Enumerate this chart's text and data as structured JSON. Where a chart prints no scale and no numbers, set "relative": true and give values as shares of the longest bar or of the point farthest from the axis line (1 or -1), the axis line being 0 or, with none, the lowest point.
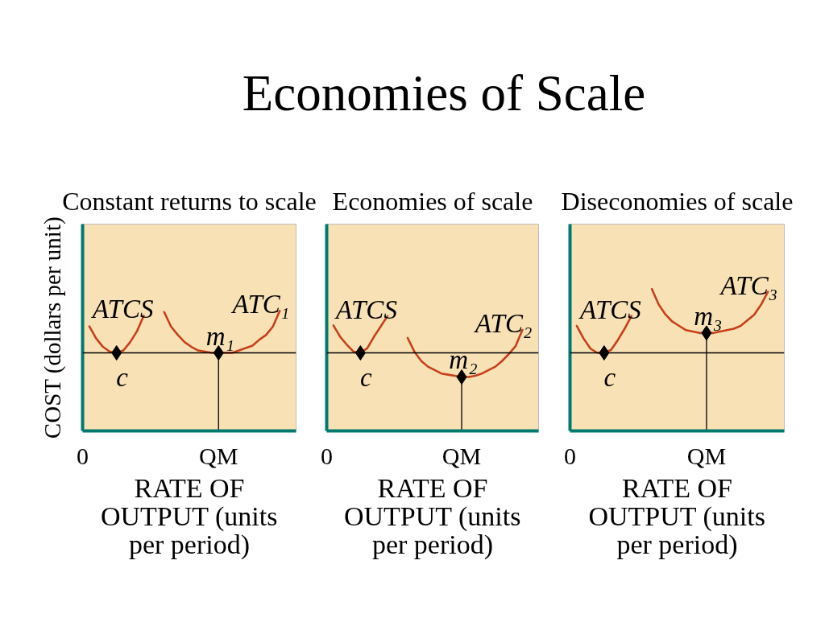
{
  "chart_data": [
    {
      "type": "line",
      "title": "Economies of Scale",
      "subtitle": "Constant returns to scale",
      "ylabel": "COST (dollars per unit)",
      "xlabel": "RATE OF OUTPUT (units per period)",
      "relative": true,
      "categories": [
        "0",
        null,
        null,
        null,
        null,
        null,
        null,
        null,
        null,
        null,
        null,
        null,
        null,
        null,
        null,
        null,
        null,
        null,
        null,
        null,
        "QM",
        null,
        null,
        null,
        null,
        null,
        null,
        null,
        null,
        null,
        null,
        null
      ],
      "series": [
        {
          "name": "ATCS",
          "color": "#c8401a",
          "values": [
            null,
            0.87,
            0.77,
            0.7,
            0.66,
            0.65,
            0.67,
            0.74,
            0.83,
            0.96,
            null,
            null,
            null,
            null,
            null,
            null,
            null,
            null,
            null,
            null,
            null,
            null,
            null,
            null,
            null,
            null,
            null,
            null,
            null,
            null,
            null,
            null
          ]
        },
        {
          "name": "ATC₁",
          "color": "#c8401a",
          "values": [
            null,
            null,
            null,
            null,
            null,
            null,
            null,
            null,
            null,
            null,
            null,
            null,
            0.99,
            0.87,
            0.8,
            0.74,
            0.7,
            0.67,
            0.66,
            0.65,
            0.65,
            0.65,
            0.65,
            0.67,
            0.69,
            0.71,
            0.76,
            0.8,
            0.87,
            1.0,
            null,
            null
          ]
        },
        {
          "name": "c",
          "type": "scatter",
          "marker": "diamond",
          "color": "#000000",
          "values": [
            null,
            null,
            null,
            null,
            null,
            0.65,
            null,
            null,
            null,
            null,
            null,
            null,
            null,
            null,
            null,
            null,
            null,
            null,
            null,
            null,
            null,
            null,
            null,
            null,
            null,
            null,
            null,
            null,
            null,
            null,
            null,
            null
          ]
        },
        {
          "name": "m₁",
          "type": "lollipop",
          "marker": "diamond",
          "color": "#000000",
          "values": [
            null,
            null,
            null,
            null,
            null,
            null,
            null,
            null,
            null,
            null,
            null,
            null,
            null,
            null,
            null,
            null,
            null,
            null,
            null,
            null,
            0.65,
            null,
            null,
            null,
            null,
            null,
            null,
            null,
            null,
            null,
            null,
            null
          ]
        }
      ],
      "ref_lines": [
        {
          "axis": "y",
          "value": 0.65,
          "color": "#000000"
        }
      ]
    },
    {
      "type": "line",
      "subtitle": "Economies of scale",
      "xlabel": "RATE OF OUTPUT (units per period)",
      "relative": true,
      "categories": [
        "0",
        null,
        null,
        null,
        null,
        null,
        null,
        null,
        null,
        null,
        null,
        null,
        null,
        null,
        null,
        null,
        null,
        null,
        null,
        null,
        "QM",
        null,
        null,
        null,
        null,
        null,
        null,
        null,
        null,
        null,
        null,
        null
      ],
      "series": [
        {
          "name": "ATCS",
          "color": "#c8401a",
          "values": [
            null,
            0.92,
            0.82,
            0.75,
            0.69,
            0.68,
            0.72,
            0.82,
            0.91,
            1.0,
            null,
            null,
            null,
            null,
            null,
            null,
            null,
            null,
            null,
            null,
            null,
            null,
            null,
            null,
            null,
            null,
            null,
            null,
            null,
            null,
            null,
            null
          ]
        },
        {
          "name": "ATC₂",
          "color": "#c8401a",
          "values": [
            null,
            null,
            null,
            null,
            null,
            null,
            null,
            null,
            null,
            null,
            null,
            null,
            0.81,
            0.69,
            0.61,
            0.56,
            0.53,
            0.5,
            0.49,
            0.48,
            0.47,
            0.47,
            0.48,
            0.5,
            0.53,
            0.56,
            0.61,
            0.67,
            0.74,
            0.88,
            null,
            null
          ]
        },
        {
          "name": "c",
          "type": "scatter",
          "marker": "diamond",
          "color": "#000000",
          "values": [
            null,
            null,
            null,
            null,
            null,
            0.68,
            null,
            null,
            null,
            null,
            null,
            null,
            null,
            null,
            null,
            null,
            null,
            null,
            null,
            null,
            null,
            null,
            null,
            null,
            null,
            null,
            null,
            null,
            null,
            null,
            null,
            null
          ]
        },
        {
          "name": "m₂",
          "type": "lollipop",
          "marker": "diamond",
          "color": "#000000",
          "values": [
            null,
            null,
            null,
            null,
            null,
            null,
            null,
            null,
            null,
            null,
            null,
            null,
            null,
            null,
            null,
            null,
            null,
            null,
            null,
            null,
            0.47,
            null,
            null,
            null,
            null,
            null,
            null,
            null,
            null,
            null,
            null,
            null
          ]
        }
      ],
      "ref_lines": [
        {
          "axis": "y",
          "value": 0.68,
          "color": "#000000"
        }
      ]
    },
    {
      "type": "line",
      "subtitle": "Diseconomies of scale",
      "xlabel": "RATE OF OUTPUT (units per period)",
      "relative": true,
      "categories": [
        "0",
        null,
        null,
        null,
        null,
        null,
        null,
        null,
        null,
        null,
        null,
        null,
        null,
        null,
        null,
        null,
        null,
        null,
        null,
        null,
        "QM",
        null,
        null,
        null,
        null,
        null,
        null,
        null,
        null,
        null,
        null,
        null
      ],
      "series": [
        {
          "name": "ATCS",
          "color": "#c8401a",
          "values": [
            null,
            0.74,
            0.65,
            0.58,
            0.55,
            0.55,
            0.57,
            0.64,
            0.72,
            0.81,
            null,
            null,
            null,
            null,
            null,
            null,
            null,
            null,
            null,
            null,
            null,
            null,
            null,
            null,
            null,
            null,
            null,
            null,
            null,
            null,
            null,
            null
          ]
        },
        {
          "name": "ATC₃",
          "color": "#c8401a",
          "values": [
            null,
            null,
            null,
            null,
            null,
            null,
            null,
            null,
            null,
            null,
            null,
            null,
            1.0,
            0.89,
            0.82,
            0.77,
            0.74,
            0.71,
            0.7,
            0.69,
            0.69,
            0.69,
            0.7,
            0.71,
            0.72,
            0.74,
            0.78,
            0.82,
            0.89,
            0.98,
            null,
            null
          ]
        },
        {
          "name": "c",
          "type": "scatter",
          "marker": "diamond",
          "color": "#000000",
          "values": [
            null,
            null,
            null,
            null,
            null,
            0.55,
            null,
            null,
            null,
            null,
            null,
            null,
            null,
            null,
            null,
            null,
            null,
            null,
            null,
            null,
            null,
            null,
            null,
            null,
            null,
            null,
            null,
            null,
            null,
            null,
            null,
            null
          ]
        },
        {
          "name": "m₃",
          "type": "lollipop",
          "marker": "diamond",
          "color": "#000000",
          "values": [
            null,
            null,
            null,
            null,
            null,
            null,
            null,
            null,
            null,
            null,
            null,
            null,
            null,
            null,
            null,
            null,
            null,
            null,
            null,
            null,
            0.69,
            null,
            null,
            null,
            null,
            null,
            null,
            null,
            null,
            null,
            null,
            null
          ]
        }
      ],
      "ref_lines": [
        {
          "axis": "y",
          "value": 0.55,
          "color": "#000000"
        }
      ]
    }
  ]
}
